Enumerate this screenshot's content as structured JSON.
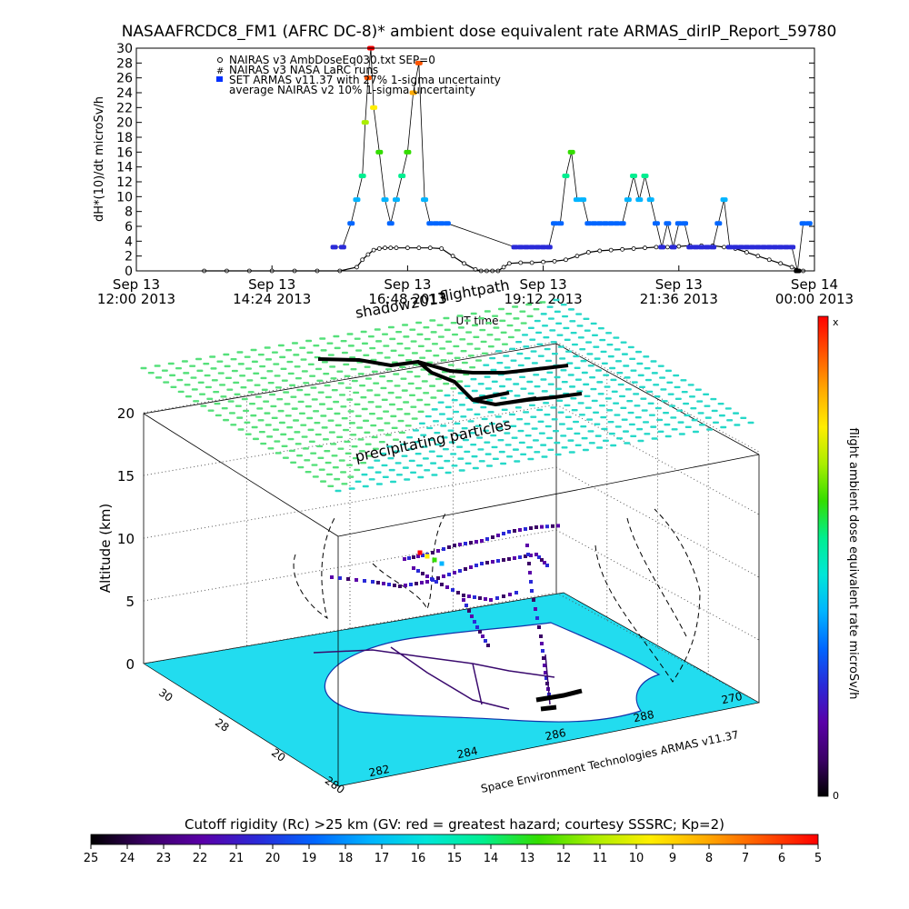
{
  "chart_data": [
    {
      "type": "line",
      "title": "NASAAFRCDC8_FM1 (AFRC DC-8)* ambient dose equivalent rate ARMAS_dirIP_Report_59780",
      "ylabel": "dH*(10)/dt microSv/h",
      "xlabel": "UT time",
      "ylim": [
        0,
        30
      ],
      "xlim": [
        0,
        12
      ],
      "y_ticks": [
        "0",
        "2",
        "4",
        "6",
        "8",
        "10",
        "12",
        "14",
        "16",
        "18",
        "20",
        "22",
        "24",
        "26",
        "28",
        "30"
      ],
      "x_ticks": [
        {
          "x": 0,
          "line1": "Sep 13",
          "line2": "12:00 2013"
        },
        {
          "x": 2.4,
          "line1": "Sep 13",
          "line2": "14:24 2013"
        },
        {
          "x": 4.8,
          "line1": "Sep 13",
          "line2": "16:48 2013"
        },
        {
          "x": 7.2,
          "line1": "Sep 13",
          "line2": "19:12 2013"
        },
        {
          "x": 9.6,
          "line1": "Sep 13",
          "line2": "21:36 2013"
        },
        {
          "x": 12,
          "line1": "Sep 14",
          "line2": "00:00 2013"
        }
      ],
      "legend": [
        "NAIRAS v3 AmbDoseEq030.txt SEP=0",
        "NAIRAS v3 NASA LaRC runs",
        "SET ARMAS v11.37 with 27% 1-sigma uncertainty",
        "average NAIRAS v2 10% 1-sigma uncertainty"
      ],
      "legend_placement": "top-left",
      "series": [
        {
          "name": "NAIRAS v3 AmbDoseEq030.txt SEP=0",
          "x": [
            1.2,
            1.6,
            2.0,
            2.4,
            2.8,
            3.2,
            3.6,
            3.9,
            4.0,
            4.1,
            4.2,
            4.3,
            4.4,
            4.5,
            4.6,
            4.8,
            5.0,
            5.2,
            5.4,
            5.6,
            5.8,
            6.0,
            6.1,
            6.2,
            6.3,
            6.4,
            6.5,
            6.6,
            6.8,
            7.0,
            7.2,
            7.4,
            7.6,
            7.8,
            8.0,
            8.2,
            8.4,
            8.6,
            8.8,
            9.0,
            9.2,
            9.4,
            9.6,
            9.8,
            10.0,
            10.2,
            10.4,
            10.6,
            10.8,
            11.0,
            11.2,
            11.4,
            11.6,
            11.8
          ],
          "y": [
            0,
            0,
            0,
            0,
            0,
            0,
            0,
            0.5,
            1.5,
            2.2,
            2.8,
            3.0,
            3.1,
            3.1,
            3.1,
            3.1,
            3.1,
            3.1,
            3.0,
            2.0,
            1.0,
            0.2,
            0,
            0,
            0,
            0,
            0.5,
            1.0,
            1.1,
            1.1,
            1.2,
            1.3,
            1.5,
            2.0,
            2.5,
            2.7,
            2.8,
            2.9,
            3.0,
            3.1,
            3.2,
            3.2,
            3.3,
            3.4,
            3.4,
            3.4,
            3.2,
            3.0,
            2.5,
            2.0,
            1.5,
            1.0,
            0.5,
            0
          ]
        },
        {
          "name": "SET ARMAS v11.37 with 27% 1-sigma uncertainty",
          "x": [
            3.5,
            3.65,
            3.8,
            3.9,
            4.0,
            4.05,
            4.1,
            4.15,
            4.2,
            4.3,
            4.4,
            4.5,
            4.6,
            4.7,
            4.8,
            4.9,
            5.0,
            5.1,
            5.2,
            5.3,
            5.4,
            5.5,
            6.7,
            6.8,
            6.9,
            7.0,
            7.1,
            7.2,
            7.3,
            7.4,
            7.5,
            7.6,
            7.7,
            7.8,
            7.9,
            8.0,
            8.1,
            8.2,
            8.3,
            8.4,
            8.5,
            8.6,
            8.7,
            8.8,
            8.9,
            9.0,
            9.1,
            9.2,
            9.3,
            9.4,
            9.5,
            9.6,
            9.7,
            9.8,
            9.9,
            10.0,
            10.1,
            10.2,
            10.3,
            10.4,
            10.5,
            10.6,
            10.7,
            10.8,
            10.9,
            11.0,
            11.1,
            11.2,
            11.3,
            11.4,
            11.5,
            11.6,
            11.7,
            11.8,
            11.9
          ],
          "y": [
            3.2,
            3.2,
            6.4,
            9.6,
            12.8,
            20,
            26,
            30,
            22,
            16,
            9.6,
            6.4,
            9.6,
            12.8,
            16,
            24,
            28,
            9.6,
            6.4,
            6.4,
            6.4,
            6.4,
            3.2,
            3.2,
            3.2,
            3.2,
            3.2,
            3.2,
            3.2,
            6.4,
            6.4,
            12.8,
            16,
            9.6,
            9.6,
            6.4,
            6.4,
            6.4,
            6.4,
            6.4,
            6.4,
            6.4,
            9.6,
            12.8,
            9.6,
            12.8,
            9.6,
            6.4,
            3.2,
            6.4,
            3.2,
            6.4,
            6.4,
            3.2,
            3.2,
            3.2,
            3.2,
            3.2,
            6.4,
            9.6,
            3.2,
            3.2,
            3.2,
            3.2,
            3.2,
            3.2,
            3.2,
            3.2,
            3.2,
            3.2,
            3.2,
            3.2,
            0,
            6.4,
            6.4
          ]
        }
      ]
    },
    {
      "type": "scatter",
      "subtype": "3d-flight-track",
      "zlabel": "Altitude (km)",
      "z_ticks": [
        "0",
        "5",
        "10",
        "15",
        "20"
      ],
      "y_ticks": [
        "30",
        "28",
        "20",
        "280"
      ],
      "x_ticks": [
        "282",
        "284",
        "286",
        "288",
        "270"
      ],
      "annotations": [
        "flightpath",
        "shadow2013",
        "precipitating particles",
        "Space Environment Technologies ARMAS v11.37"
      ],
      "top_axis_labels": [
        "UT time"
      ],
      "side_colorbar": {
        "label": "flight ambient dose equivalent rate microSv/h",
        "top_label": "x",
        "bottom_label": "0",
        "colors": [
          "#000000",
          "#3b0066",
          "#5a00a8",
          "#2a2ad8",
          "#0066ff",
          "#00b4ff",
          "#00e6d8",
          "#00ee90",
          "#33dd00",
          "#aaee00",
          "#ffee00",
          "#ffaa00",
          "#ff5500",
          "#ff0000"
        ]
      },
      "bottom_colorbar": {
        "label": "Cutoff rigidity (Rc) >25 km (GV: red = greatest hazard; courtesy SSSRC; Kp=2)",
        "ticks": [
          "25",
          "24",
          "23",
          "22",
          "21",
          "20",
          "19",
          "18",
          "17",
          "16",
          "15",
          "14",
          "13",
          "12",
          "11",
          "10",
          "9",
          "8",
          "7",
          "6",
          "5"
        ],
        "colors": [
          "#000000",
          "#3b0066",
          "#5a00a8",
          "#2a2ad8",
          "#0066ff",
          "#00b4ff",
          "#00e6d8",
          "#00ee90",
          "#33dd00",
          "#aaee00",
          "#ffee00",
          "#ffaa00",
          "#ff5500",
          "#ff0000"
        ]
      }
    }
  ]
}
